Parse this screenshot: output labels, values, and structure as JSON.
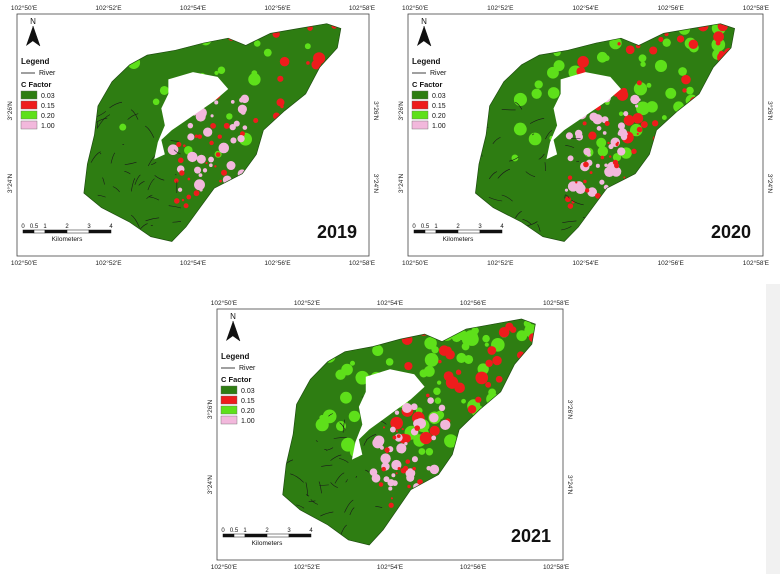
{
  "colors": {
    "c003": "#2e7d12",
    "c015": "#ee1c1c",
    "c020": "#5ee01a",
    "c100": "#f2b8dc",
    "river": "#1a1a1a",
    "water": "#ffffff",
    "frame": "#444444"
  },
  "legend": {
    "title": "Legend",
    "river_label": "River",
    "factor_title": "C Factor",
    "classes": [
      {
        "label": "0.03",
        "color": "#2e7d12"
      },
      {
        "label": "0.15",
        "color": "#ee1c1c"
      },
      {
        "label": "0.20",
        "color": "#5ee01a"
      },
      {
        "label": "1.00",
        "color": "#f2b8dc"
      }
    ]
  },
  "north_arrow": {
    "letter": "N"
  },
  "scalebar": {
    "ticks": [
      "0",
      "0.5",
      "1",
      "2",
      "3",
      "4"
    ],
    "unit": "Kilometers"
  },
  "longitude_labels": [
    "102°50'E",
    "102°52'E",
    "102°54'E",
    "102°56'E",
    "102°58'E"
  ],
  "latitude_labels": [
    "3°26'N",
    "3°24'N"
  ],
  "maps": [
    {
      "year": "2019",
      "pink_share": 0.2,
      "red_share": 0.1,
      "lime_share": 0.1
    },
    {
      "year": "2020",
      "pink_share": 0.2,
      "red_share": 0.25,
      "lime_share": 0.25
    },
    {
      "year": "2021",
      "pink_share": 0.2,
      "red_share": 0.18,
      "lime_share": 0.35
    }
  ]
}
